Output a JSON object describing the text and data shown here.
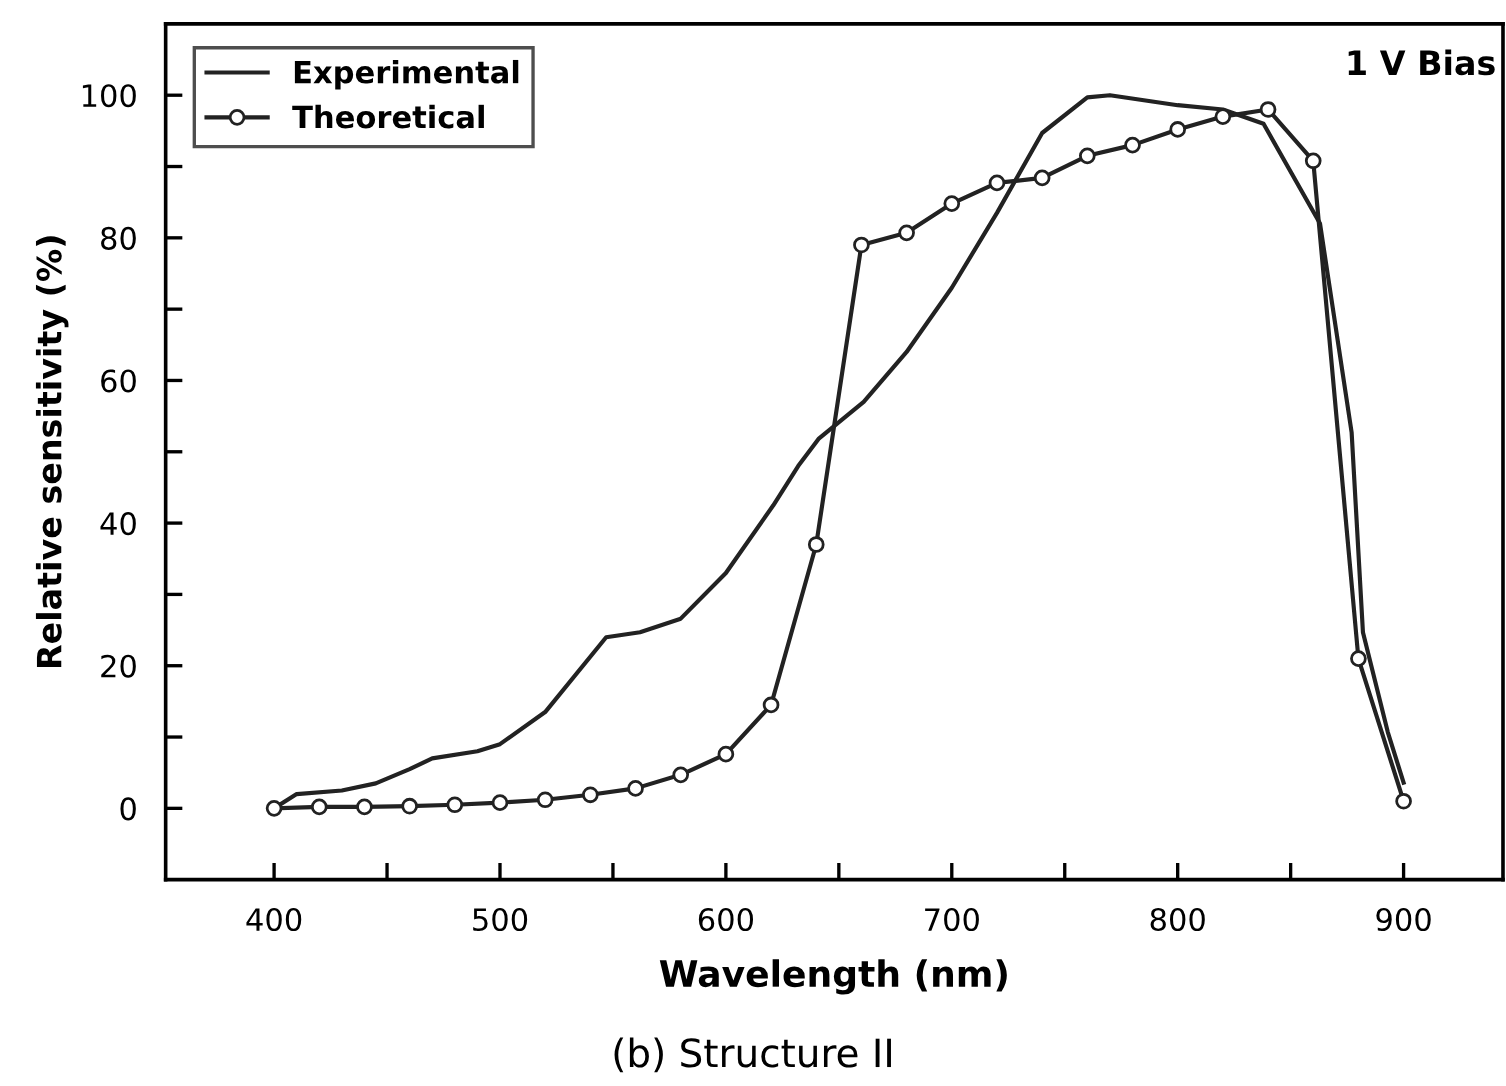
{
  "chart_data": {
    "type": "line",
    "xlabel": "Wavelength (nm)",
    "ylabel": "Relative sensitivity (%)",
    "xlim": [
      352,
      944
    ],
    "ylim": [
      -10,
      110
    ],
    "xticks": [
      400,
      {
        "value": 450,
        "label": null
      },
      500,
      {
        "value": 550,
        "label": null
      },
      600,
      {
        "value": 650,
        "label": null
      },
      700,
      {
        "value": 750,
        "label": null
      },
      800,
      {
        "value": 850,
        "label": null
      },
      900
    ],
    "yticks": [
      0,
      {
        "value": 10,
        "label": null
      },
      20,
      {
        "value": 30,
        "label": null
      },
      40,
      {
        "value": 50,
        "label": null
      },
      60,
      {
        "value": 70,
        "label": null
      },
      80,
      {
        "value": 90,
        "label": null
      },
      100
    ],
    "grid": false,
    "legend": "top left",
    "annotations": [
      "1 V Bias",
      "(b) Structure II"
    ],
    "series": [
      {
        "name": "Experimental",
        "color": "#222222",
        "marker": "none",
        "x": [
          400,
          410,
          430,
          445,
          460,
          470,
          490,
          500,
          520,
          547,
          562,
          580,
          600,
          621,
          632,
          641,
          661,
          680,
          700,
          720,
          740,
          760,
          770,
          800,
          820,
          838,
          863,
          877,
          882,
          893,
          900
        ],
        "values": [
          0,
          2,
          2.5,
          3.5,
          5.5,
          7,
          8,
          9,
          13.5,
          24,
          24.7,
          26.6,
          33,
          42.5,
          48,
          51.8,
          57,
          64,
          73,
          83.5,
          94.7,
          99.7,
          100,
          98.6,
          98,
          96,
          82,
          52.7,
          24.7,
          10.7,
          3.6
        ]
      },
      {
        "name": "Theoretical",
        "color": "#222222",
        "marker": "circle",
        "x": [
          400,
          420,
          440,
          460,
          480,
          500,
          520,
          540,
          560,
          580,
          600,
          620,
          640,
          660,
          680,
          700,
          720,
          740,
          760,
          780,
          800,
          820,
          840,
          860,
          880,
          900
        ],
        "values": [
          0,
          0.2,
          0.2,
          0.3,
          0.5,
          0.8,
          1.2,
          1.9,
          2.8,
          4.7,
          7.6,
          14.5,
          37,
          79,
          80.7,
          84.8,
          87.7,
          88.4,
          91.5,
          93,
          95.2,
          97,
          98,
          90.8,
          21,
          1
        ]
      }
    ]
  }
}
